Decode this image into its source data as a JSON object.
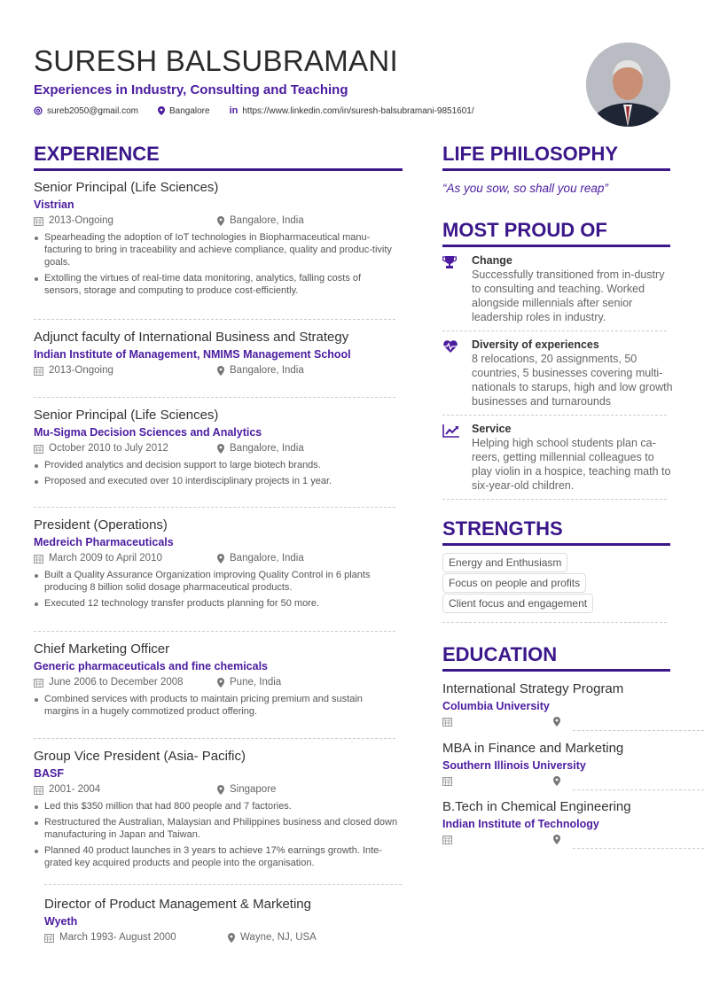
{
  "header": {
    "name": "SURESH BALSUBRAMANI",
    "tagline": "Experiences in Industry, Consulting and Teaching",
    "email": "sureb2050@gmail.com",
    "location": "Bangalore",
    "linkedin": "https://www.linkedin.com/in/suresh-balsubramani-9851601/"
  },
  "colors": {
    "accent": "#4b1ca0",
    "heading": "#3b178a",
    "text": "#333333"
  },
  "experience": {
    "heading": "EXPERIENCE",
    "items": [
      {
        "title": "Senior Principal (Life Sciences)",
        "company": "Vistrian",
        "date": "2013-Ongoing",
        "location": "Bangalore, India",
        "bullets": [
          "Spearheading the adoption of IoT technologies in Biopharmaceutical manu-facturing to bring in traceability and achieve compliance, quality and produc-tivity goals.",
          "Extolling the virtues of real-time data monitoring, analytics, falling costs of sensors, storage and computing to produce cost-efficiently."
        ]
      },
      {
        "title": "Adjunct faculty of International Business and Strategy",
        "company": "Indian Institute of Management, NMIMS Management School",
        "date": "2013-Ongoing",
        "location": "Bangalore, India",
        "bullets": []
      },
      {
        "title": "Senior Principal (Life Sciences)",
        "company": "Mu-Sigma Decision Sciences and Analytics",
        "date": "October 2010 to July 2012",
        "location": "Bangalore, India",
        "bullets": [
          "Provided analytics and decision support to large biotech brands.",
          "Proposed and executed over 10 interdisciplinary projects in 1 year."
        ]
      },
      {
        "title": "President (Operations)",
        "company": "Medreich Pharmaceuticals",
        "date": "March 2009 to April 2010",
        "location": "Bangalore, India",
        "bullets": [
          "Built a Quality Assurance Organization improving Quality Control in 6 plants producing 8 billion solid dosage pharmaceutical products.",
          "Executed 12 technology transfer products planning for 50 more."
        ]
      },
      {
        "title": "Chief Marketing Officer",
        "company": "Generic pharmaceuticals and fine chemicals",
        "date": "June 2006 to December 2008",
        "location": "Pune, India",
        "bullets": [
          "Combined services with products to maintain pricing premium and sustain margins in a hugely commotized product offering."
        ]
      },
      {
        "title": "Group Vice President (Asia- Pacific)",
        "company": "BASF",
        "date": "2001- 2004",
        "location": "Singapore",
        "bullets": [
          "Led this $350 million that had 800 people and 7 factories.",
          "Restructured the Australian, Malaysian and Philippines business and closed down manufacturing in Japan and Taiwan.",
          "Planned 40 product launches in 3 years to achieve 17% earnings growth. Inte-grated key acquired products and people into the organisation."
        ]
      },
      {
        "title": "Director of Product Management & Marketing",
        "company": "Wyeth",
        "date": "March 1993- August 2000",
        "location": "Wayne, NJ, USA",
        "bullets": []
      }
    ]
  },
  "philosophy": {
    "heading": "LIFE PHILOSOPHY",
    "quote": "“As you sow, so shall you reap”"
  },
  "proud": {
    "heading": "MOST PROUD OF",
    "items": [
      {
        "icon": "trophy-icon",
        "title": "Change",
        "text": "Successfully transitioned from in-dustry to consulting and teaching. Worked alongside millennials after senior leadership roles in industry."
      },
      {
        "icon": "heartbeat-icon",
        "title": "Diversity of experiences",
        "text": "8 relocations, 20 assignments, 50 countries, 5 businesses covering multi-nationals to starups, high and low growth businesses and turnarounds"
      },
      {
        "icon": "chart-line-icon",
        "title": "Service",
        "text": "Helping high school students plan ca-reers, getting millennial colleagues to play violin in a hospice, teaching math to six-year-old children."
      }
    ]
  },
  "strengths": {
    "heading": "STRENGTHS",
    "items": [
      "Energy and Enthusiasm",
      "Focus on people and profits",
      "Client focus and engagement"
    ]
  },
  "education": {
    "heading": "EDUCATION",
    "items": [
      {
        "degree": "International Strategy Program",
        "school": "Columbia University"
      },
      {
        "degree": "MBA in Finance and Marketing",
        "school": "Southern Illinois University"
      },
      {
        "degree": "B.Tech in Chemical Engineering",
        "school": "Indian Institute of Technology"
      }
    ]
  }
}
